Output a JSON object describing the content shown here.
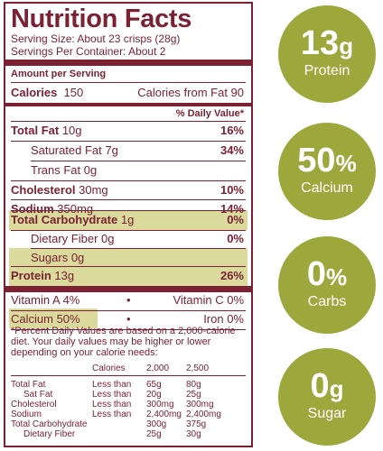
{
  "label": {
    "title": "Nutrition Facts",
    "serving_size": "Serving Size: About 23 crisps (28g)",
    "servings_per_container": "Servings Per Container: About 2",
    "amount_per_serving": "Amount per Serving",
    "calories_label": "Calories",
    "calories_value": "150",
    "calories_from_fat": "Calories from Fat  90",
    "dv_header": "% Daily Value*",
    "rows": [
      {
        "label": "Total Fat",
        "amount": "10g",
        "dv": "16%"
      },
      {
        "label": "Saturated Fat",
        "amount": "7g",
        "dv": "34%"
      },
      {
        "label": "Trans Fat",
        "amount": "0g",
        "dv": ""
      },
      {
        "label": "Cholesterol",
        "amount": "30mg",
        "dv": "10%"
      },
      {
        "label": "Sodium",
        "amount": "350mg",
        "dv": "14%"
      },
      {
        "label": "Total Carbohydrate",
        "amount": "1g",
        "dv": "0%"
      },
      {
        "label": "Dietary Fiber",
        "amount": "0g",
        "dv": "0%"
      },
      {
        "label": "Sugars",
        "amount": "0g",
        "dv": ""
      },
      {
        "label": "Protein",
        "amount": "13g",
        "dv": "26%"
      }
    ],
    "vitamin_a": "Vitamin A  4%",
    "vitamin_c": "Vitamin C  0%",
    "calcium": "Calcium  50%",
    "iron": "Iron  0%",
    "bullet": "•",
    "footnote": "*Percent Daily Values are based on a 2,000-calorie diet. Your daily values may be higher or lower depending on your calorie needs:",
    "table": {
      "header": [
        "Calories",
        "2,000",
        "2,500"
      ],
      "rows": [
        [
          "Total Fat",
          "Less than",
          "65g",
          "80g"
        ],
        [
          "Sat Fat",
          "Less than",
          "20g",
          "25g"
        ],
        [
          "Cholesterol",
          "Less than",
          "300mg",
          "300mg"
        ],
        [
          "Sodium",
          "Less than",
          "2,400mg",
          "2,400mg"
        ],
        [
          "Total Carbohydrate",
          "",
          "300g",
          "375g"
        ],
        [
          "Dietary Fiber",
          "",
          "25g",
          "30g"
        ]
      ]
    }
  },
  "badges": [
    {
      "number": "13",
      "unit": "g",
      "caption": "Protein"
    },
    {
      "number": "50",
      "unit": "%",
      "caption": "Calcium"
    },
    {
      "number": "0",
      "unit": "%",
      "caption": "Carbs"
    },
    {
      "number": "0",
      "unit": "g",
      "caption": "Sugar"
    }
  ],
  "colors": {
    "label": "#7a2233",
    "highlight": "#d9da9b",
    "badge": "#9da83c"
  }
}
